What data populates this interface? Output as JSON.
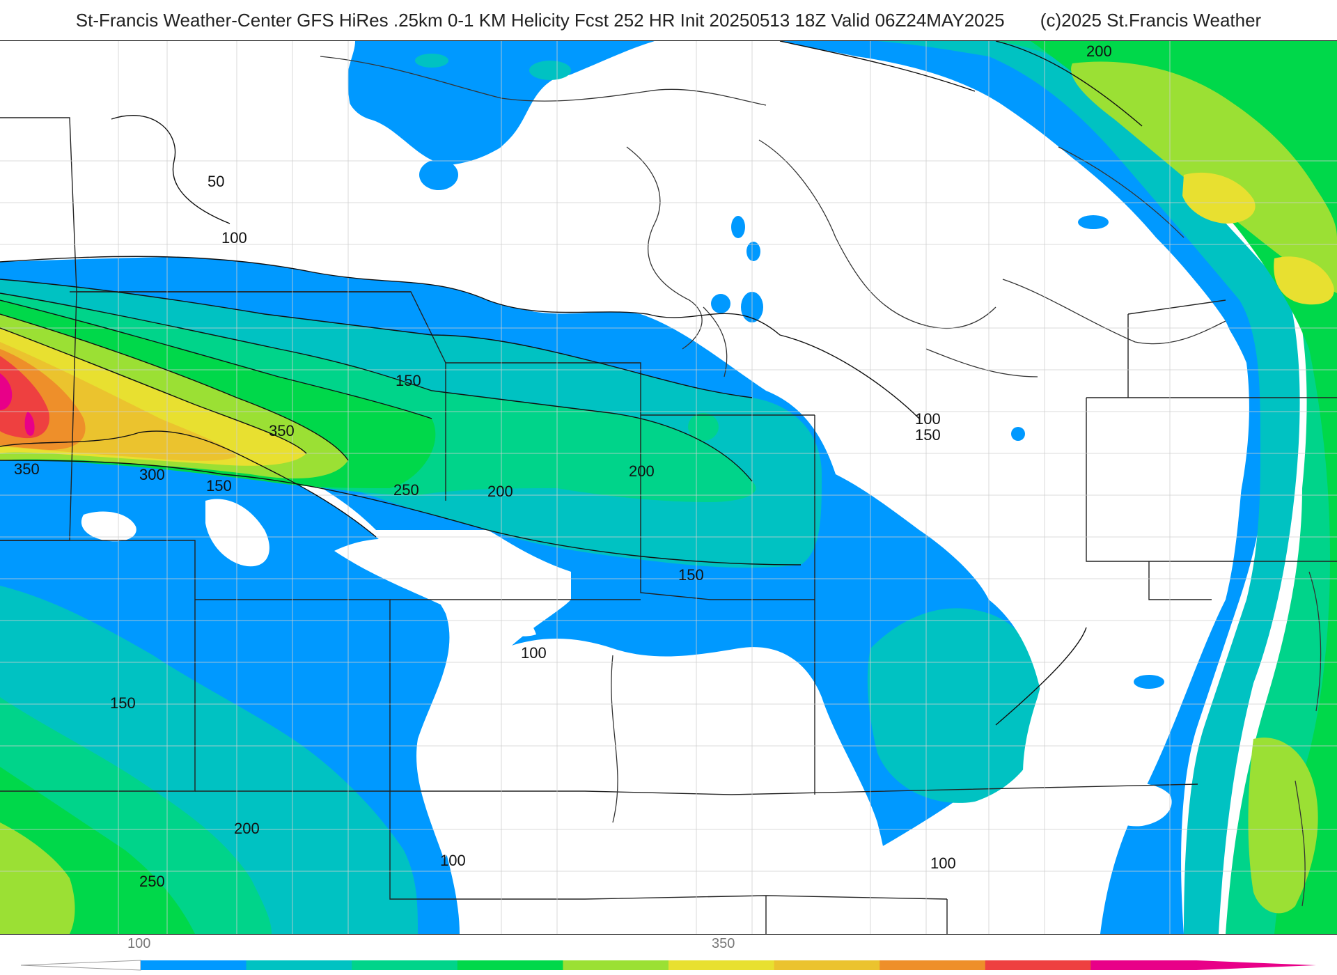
{
  "header": {
    "title": "St-Francis Weather-Center GFS HiRes .25km 0-1 KM Helicity Fcst 252 HR Init 20250513 18Z  Valid 06Z24MAY2025",
    "copyright": "(c)2025 St.Francis Weather"
  },
  "colorbar": {
    "tick_labels": [
      "100",
      "350"
    ],
    "colors": [
      "#0099ff",
      "#00c2c2",
      "#00d48a",
      "#00d84a",
      "#9be034",
      "#e8e030",
      "#ebc32e",
      "#ee8f2a",
      "#ee4040",
      "#e80088"
    ]
  },
  "contour_labels": [
    "50",
    "100",
    "150",
    "200",
    "250",
    "300",
    "350"
  ],
  "fill_colors": {
    "c100": "#0099ff",
    "c150": "#00c2c2",
    "c200": "#00d48a",
    "c250": "#00d84a",
    "c300": "#9be034",
    "c350": "#e8e030",
    "c400": "#ebc32e",
    "c450": "#ee8f2a",
    "c500": "#ee4040",
    "c550": "#e80088"
  }
}
